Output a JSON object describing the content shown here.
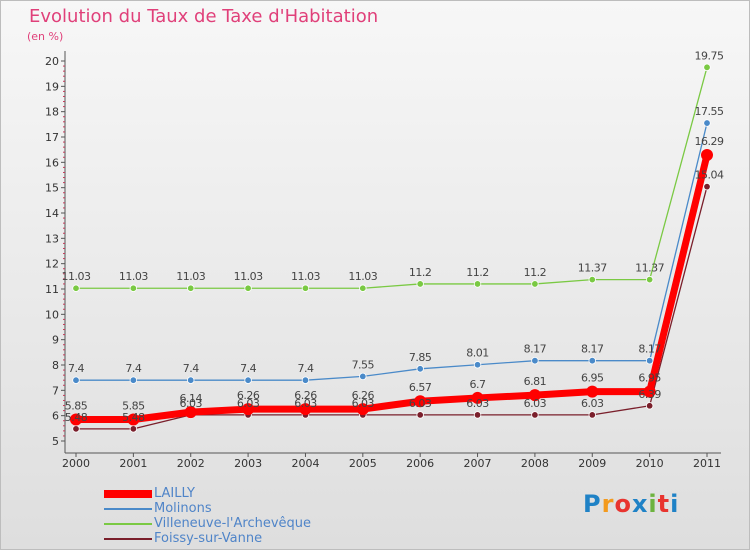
{
  "title": "Evolution du Taux de Taxe d'Habitation",
  "unit": "(en %)",
  "logo": {
    "text": "Proxiti",
    "letter_colors": [
      "#1f82c6",
      "#f39a1d",
      "#e8342f",
      "#1f82c6",
      "#6db33f",
      "#e8342f",
      "#1f82c6"
    ]
  },
  "chart_data": {
    "type": "line",
    "categories": [
      "2000",
      "2001",
      "2002",
      "2003",
      "2004",
      "2005",
      "2006",
      "2007",
      "2008",
      "2009",
      "2010",
      "2011"
    ],
    "ylim": [
      5,
      20
    ],
    "yticks": [
      5,
      6,
      7,
      8,
      9,
      10,
      11,
      12,
      13,
      14,
      15,
      16,
      17,
      18,
      19,
      20
    ],
    "grid": false,
    "legend_position": "bottom-left",
    "series": [
      {
        "name": "LAILLY",
        "color": "#ff0000",
        "values": [
          5.85,
          5.85,
          6.14,
          6.26,
          6.26,
          6.26,
          6.57,
          6.7,
          6.81,
          6.95,
          6.95,
          16.29
        ],
        "labels": [
          "5.85",
          "5.85",
          "6.14",
          "6.26",
          "6.26",
          "6.26",
          "6.57",
          "6.7",
          "6.81",
          "6.95",
          "6.95",
          "16.29"
        ]
      },
      {
        "name": "Molinons",
        "color": "#4a8ac9",
        "values": [
          7.4,
          7.4,
          7.4,
          7.4,
          7.4,
          7.55,
          7.85,
          8.01,
          8.17,
          8.17,
          8.17,
          17.55
        ],
        "labels": [
          "7.4",
          "7.4",
          "7.4",
          "7.4",
          "7.4",
          "7.55",
          "7.85",
          "8.01",
          "8.17",
          "8.17",
          "8.17",
          "17.55"
        ]
      },
      {
        "name": "Villeneuve-l'Archevêque",
        "color": "#7ac943",
        "values": [
          11.03,
          11.03,
          11.03,
          11.03,
          11.03,
          11.03,
          11.2,
          11.2,
          11.2,
          11.37,
          11.37,
          19.75
        ],
        "labels": [
          "11.03",
          "11.03",
          "11.03",
          "11.03",
          "11.03",
          "11.03",
          "11.2",
          "11.2",
          "11.2",
          "11.37",
          "11.37",
          "19.75"
        ]
      },
      {
        "name": "Foissy-sur-Vanne",
        "color": "#7a1f2b",
        "values": [
          5.48,
          5.48,
          6.03,
          6.03,
          6.03,
          6.03,
          6.03,
          6.03,
          6.03,
          6.03,
          6.39,
          15.04
        ],
        "labels": [
          "5.48",
          "5.48",
          "6.03",
          "6.03",
          "6.03",
          "6.03",
          "6.03",
          "6.03",
          "6.03",
          "6.03",
          "6.39",
          "15.04"
        ]
      }
    ]
  }
}
